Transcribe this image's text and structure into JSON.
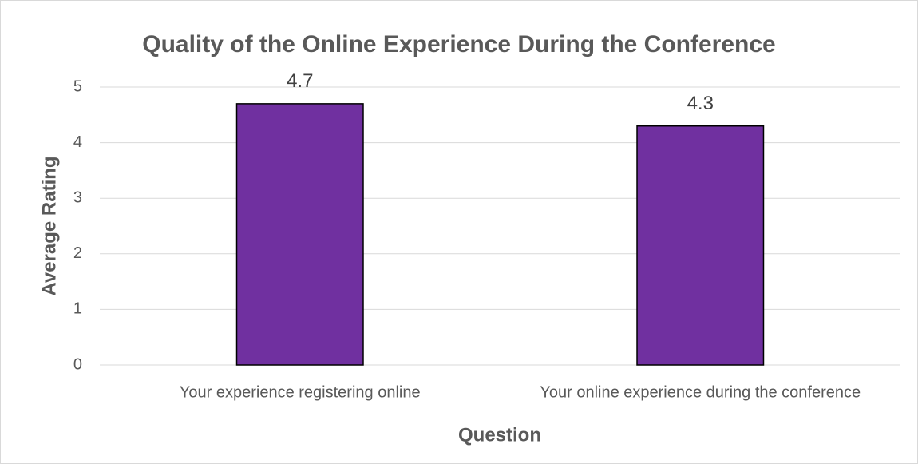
{
  "chart_data": {
    "type": "bar",
    "title": "Quality of the Online Experience During the Conference",
    "x_label": "Question",
    "y_label": "Average Rating",
    "categories": [
      "Your experience registering online",
      "Your online experience during the conference"
    ],
    "values": [
      4.7,
      4.3
    ],
    "color": "#7030a0",
    "ylim": [
      0,
      5
    ],
    "yticks": [
      0,
      1,
      2,
      3,
      4,
      5
    ],
    "grid": true,
    "data_labels": true
  }
}
